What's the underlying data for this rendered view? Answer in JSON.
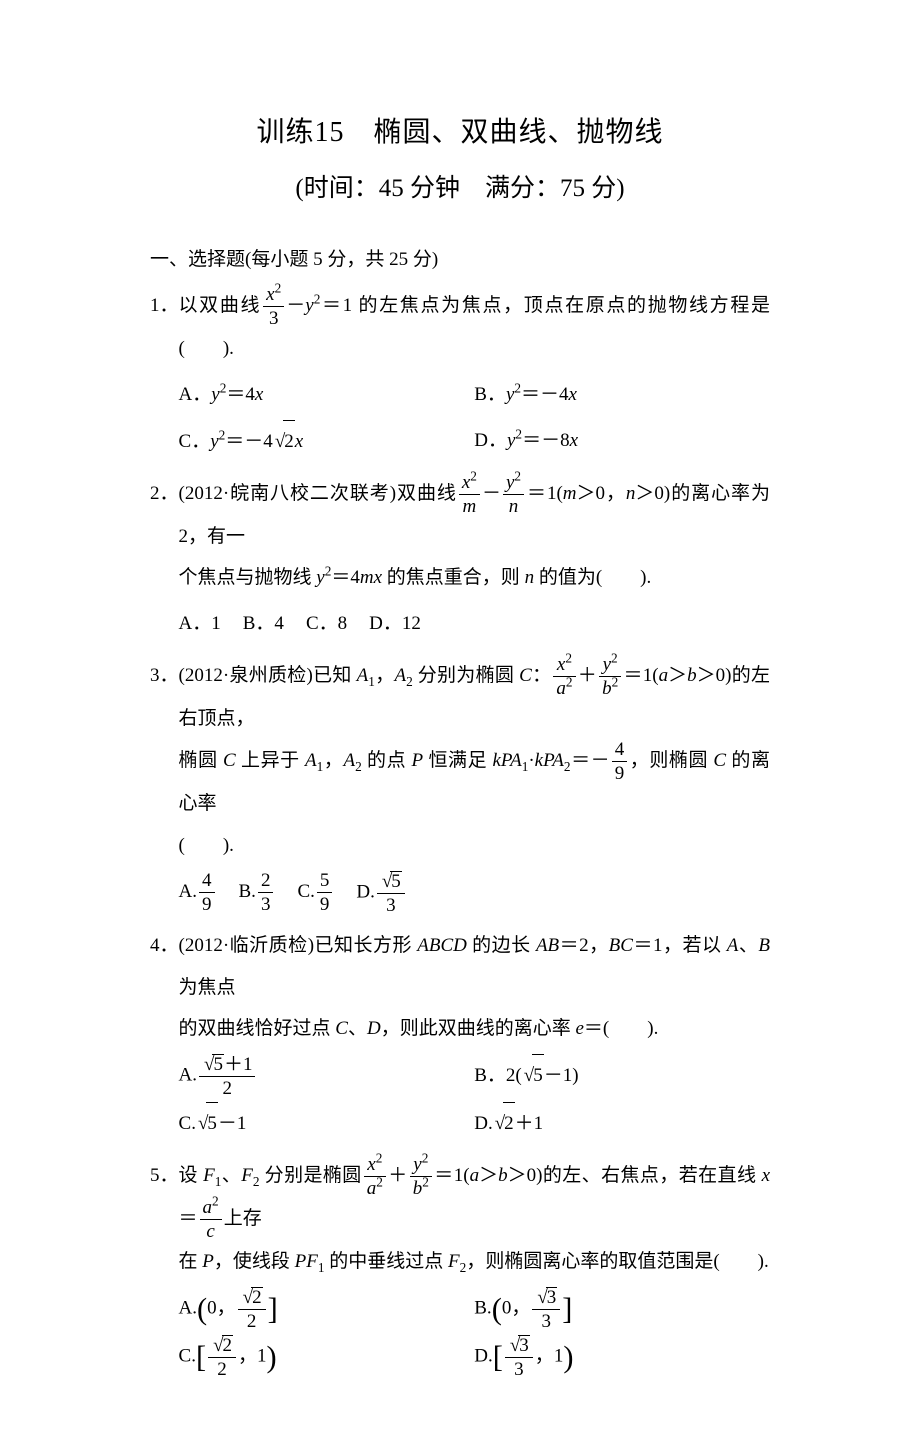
{
  "title": "训练15　椭圆、双曲线、抛物线",
  "subtitle": "(时间：45 分钟　满分：75 分)",
  "section1": {
    "header": "一、选择题(每小题 5 分，共 25 分)",
    "q1": {
      "num": "1．",
      "stem_a": "以双曲线",
      "stem_b": "－",
      "stem_c": "＝1 的左焦点为焦点，顶点在原点的抛物线方程是(　　).",
      "frac1_num": "x",
      "frac1_den": "3",
      "y2": "y",
      "optA": "A．",
      "optA_eq": "＝4",
      "optB": "B．",
      "optB_eq": "＝－4",
      "optC": "C．",
      "optC_eq": "＝－4",
      "optD": "D．",
      "optD_eq": "＝－8",
      "var_y": "y",
      "var_x": "x",
      "sqrt2": "2"
    },
    "q2": {
      "num": "2．",
      "stem_a": "(2012·皖南八校二次联考)双曲线",
      "stem_b": "－",
      "stem_c": "＝1(",
      "stem_d": "＞0，",
      "stem_e": "＞0)的离心率为 2，有一",
      "frac1_num": "x",
      "frac1_den": "m",
      "frac2_num": "y",
      "frac2_den": "n",
      "var_m": "m",
      "var_n": "n",
      "stem_line2_a": "个焦点与抛物线 ",
      "stem_line2_b": "＝4",
      "stem_line2_c": " 的焦点重合，则 ",
      "stem_line2_d": " 的值为(　　).",
      "var_y": "y",
      "var_mx": "mx",
      "optA": "A．1",
      "optB": "B．4",
      "optC": "C．8",
      "optD": "D．12"
    },
    "q3": {
      "num": "3．",
      "stem_a": "(2012·泉州质检)已知 ",
      "stem_b": "，",
      "stem_c": " 分别为椭圆 ",
      "stem_d": "：",
      "stem_e": "＋",
      "stem_f": "＝1(",
      "stem_g": "＞",
      "stem_h": "＞0)的左右顶点，",
      "A1": "A",
      "A2": "A",
      "C": "C",
      "frac1_num": "x",
      "frac1_den": "a",
      "frac2_num": "y",
      "frac2_den": "b",
      "var_a": "a",
      "var_b": "b",
      "line2_a": "椭圆 ",
      "line2_b": " 上异于 ",
      "line2_c": "，",
      "line2_d": " 的点 ",
      "line2_e": " 恒满足 ",
      "line2_f": "·",
      "line2_g": "＝－",
      "line2_h": "，则椭圆 ",
      "line2_i": " 的离心率",
      "P": "P",
      "k": "k",
      "PA": "PA",
      "frac3_num": "4",
      "frac3_den": "9",
      "line3": "(　　).",
      "optA": "A.",
      "optA_num": "4",
      "optA_den": "9",
      "optB": "B.",
      "optB_num": "2",
      "optB_den": "3",
      "optC": "C.",
      "optC_num": "5",
      "optC_den": "9",
      "optD": "D.",
      "optD_sqrt": "5",
      "optD_den": "3"
    },
    "q4": {
      "num": "4．",
      "stem_a": "(2012·临沂质检)已知长方形 ",
      "stem_b": " 的边长 ",
      "stem_c": "＝2，",
      "stem_d": "＝1，若以 ",
      "stem_e": "、",
      "stem_f": " 为焦点",
      "ABCD": "ABCD",
      "AB": "AB",
      "BC": "BC",
      "A": "A",
      "B": "B",
      "line2_a": "的双曲线恰好过点 ",
      "line2_b": "、",
      "line2_c": "，则此双曲线的离心率 ",
      "line2_d": "＝(　　).",
      "C": "C",
      "D": "D",
      "e": "e",
      "optA": "A.",
      "optA_sqrt": "5",
      "optA_plus": "＋1",
      "optA_den": "2",
      "optB": "B．2(",
      "optB_sqrt": "5",
      "optB_tail": "－1)",
      "optC": "C.",
      "optC_sqrt": "5",
      "optC_tail": "－1",
      "optD": "D.",
      "optD_sqrt": "2",
      "optD_tail": "＋1"
    },
    "q5": {
      "num": "5．",
      "stem_a": "设 ",
      "stem_b": "、",
      "stem_c": " 分别是椭圆",
      "stem_d": "＋",
      "stem_e": "＝1(",
      "stem_f": "＞",
      "stem_g": "＞0)的左、右焦点，若在直线 ",
      "stem_h": "＝",
      "stem_i": "上存",
      "F": "F",
      "frac1_num": "x",
      "frac1_den": "a",
      "frac2_num": "y",
      "frac2_den": "b",
      "var_a": "a",
      "var_b": "b",
      "var_x": "x",
      "frac3_num": "a",
      "frac3_den": "c",
      "line2_a": "在 ",
      "line2_b": "，使线段 ",
      "line2_c": " 的中垂线过点 ",
      "line2_d": "，则椭圆离心率的取值范围是(　　).",
      "P": "P",
      "PF": "PF",
      "optA": "A.",
      "optA_zero": "0",
      "optA_sqrt": "2",
      "optA_den": "2",
      "optB": "B.",
      "optB_zero": "0",
      "optB_sqrt": "3",
      "optB_den": "3",
      "optC": "C.",
      "optC_sqrt": "2",
      "optC_den": "2",
      "optC_one": "1",
      "optD": "D.",
      "optD_sqrt": "3",
      "optD_den": "3",
      "optD_one": "1"
    }
  }
}
